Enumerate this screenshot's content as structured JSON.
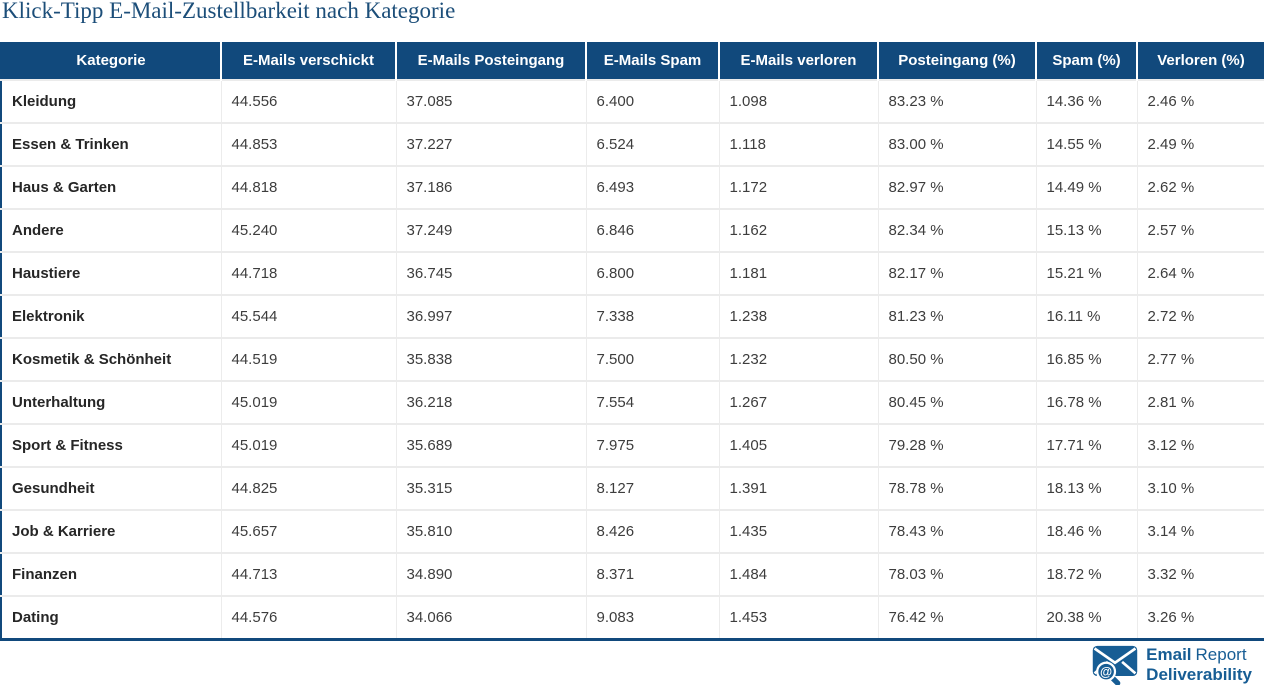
{
  "title": "Klick-Tipp E-Mail-Zustellbarkeit nach Kategorie",
  "colors": {
    "header_bg": "#11497c",
    "header_text": "#ffffff",
    "title": "#1c4e79",
    "row_text": "#3d3d3d",
    "category_text": "#262626",
    "border_accent": "#11497c",
    "separator": "#ebebeb",
    "logo": "#175d94"
  },
  "chart_data": {
    "type": "table",
    "title": "Klick-Tipp E-Mail-Zustellbarkeit nach Kategorie",
    "columns": [
      "Kategorie",
      "E-Mails verschickt",
      "E-Mails Posteingang",
      "E-Mails Spam",
      "E-Mails verloren",
      "Posteingang (%)",
      "Spam (%)",
      "Verloren (%)"
    ],
    "rows": [
      [
        "Kleidung",
        "44.556",
        "37.085",
        "6.400",
        "1.098",
        "83.23 %",
        "14.36 %",
        "2.46 %"
      ],
      [
        "Essen & Trinken",
        "44.853",
        "37.227",
        "6.524",
        "1.118",
        "83.00 %",
        "14.55 %",
        "2.49 %"
      ],
      [
        "Haus & Garten",
        "44.818",
        "37.186",
        "6.493",
        "1.172",
        "82.97 %",
        "14.49 %",
        "2.62 %"
      ],
      [
        "Andere",
        "45.240",
        "37.249",
        "6.846",
        "1.162",
        "82.34 %",
        "15.13 %",
        "2.57 %"
      ],
      [
        "Haustiere",
        "44.718",
        "36.745",
        "6.800",
        "1.181",
        "82.17 %",
        "15.21 %",
        "2.64 %"
      ],
      [
        "Elektronik",
        "45.544",
        "36.997",
        "7.338",
        "1.238",
        "81.23 %",
        "16.11 %",
        "2.72 %"
      ],
      [
        "Kosmetik & Schönheit",
        "44.519",
        "35.838",
        "7.500",
        "1.232",
        "80.50 %",
        "16.85 %",
        "2.77 %"
      ],
      [
        "Unterhaltung",
        "45.019",
        "36.218",
        "7.554",
        "1.267",
        "80.45 %",
        "16.78 %",
        "2.81 %"
      ],
      [
        "Sport & Fitness",
        "45.019",
        "35.689",
        "7.975",
        "1.405",
        "79.28 %",
        "17.71 %",
        "3.12 %"
      ],
      [
        "Gesundheit",
        "44.825",
        "35.315",
        "8.127",
        "1.391",
        "78.78 %",
        "18.13 %",
        "3.10 %"
      ],
      [
        "Job & Karriere",
        "45.657",
        "35.810",
        "8.426",
        "1.435",
        "78.43 %",
        "18.46 %",
        "3.14 %"
      ],
      [
        "Finanzen",
        "44.713",
        "34.890",
        "8.371",
        "1.484",
        "78.03 %",
        "18.72 %",
        "3.32 %"
      ],
      [
        "Dating",
        "44.576",
        "34.066",
        "9.083",
        "1.453",
        "76.42 %",
        "20.38 %",
        "3.26 %"
      ]
    ]
  },
  "logo": {
    "line1_bold": "Email",
    "line1_regular": "Report",
    "line2": "Deliverability",
    "icon": "envelope-magnifier-at-icon"
  }
}
